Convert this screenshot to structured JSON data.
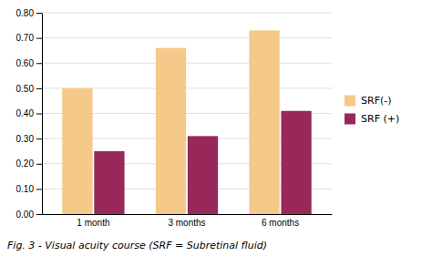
{
  "chart_data": {
    "type": "bar",
    "categories": [
      "1 month",
      "3 months",
      "6 months"
    ],
    "series": [
      {
        "name": "SRF(-)",
        "color": "#F5C98A",
        "values": [
          0.5,
          0.66,
          0.73
        ]
      },
      {
        "name": "SRF (+)",
        "color": "#99285A",
        "values": [
          0.25,
          0.31,
          0.41
        ]
      }
    ],
    "ylim": [
      0.0,
      0.8
    ],
    "yticks": [
      {
        "value": 0.0,
        "label": "0.00"
      },
      {
        "value": 0.1,
        "label": "0.10"
      },
      {
        "value": 0.2,
        "label": "0.20"
      },
      {
        "value": 0.3,
        "label": "0.30"
      },
      {
        "value": 0.4,
        "label": "0.40"
      },
      {
        "value": 0.5,
        "label": "0.50"
      },
      {
        "value": 0.6,
        "label": "0.60"
      },
      {
        "value": 0.7,
        "label": "0.70"
      },
      {
        "value": 0.8,
        "label": "0.80"
      }
    ],
    "grid": true,
    "legend": "right",
    "caption": "Fig. 3 - Visual acuity course (SRF = Subretinal fluid)"
  }
}
